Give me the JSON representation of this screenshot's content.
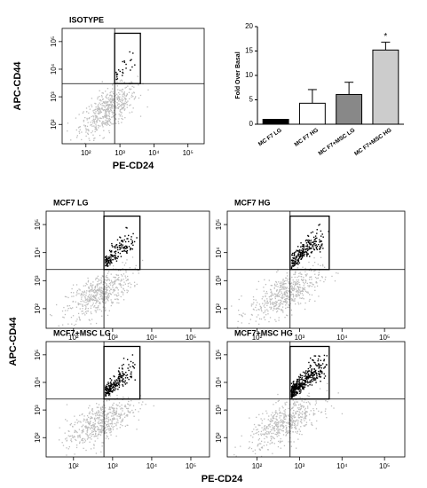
{
  "chart_data": [
    {
      "type": "flow",
      "title": "ISOTYPE",
      "xlabel": "PE-CD24",
      "ylabel": "APC-CD44",
      "xscale": "log",
      "yscale": "log",
      "xlim": [
        20,
        300000
      ],
      "ylim": [
        20,
        300000
      ],
      "xticks": [
        {
          "value": 100,
          "label": "10²"
        },
        {
          "value": 1000,
          "label": "10³"
        },
        {
          "value": 10000,
          "label": "10⁴"
        },
        {
          "value": 100000,
          "label": "10⁵"
        }
      ],
      "yticks": [
        {
          "value": 100,
          "label": "10²"
        },
        {
          "value": 1000,
          "label": "10³"
        },
        {
          "value": 10000,
          "label": "10⁴"
        },
        {
          "value": 100000,
          "label": "10⁵"
        }
      ],
      "quadrant": {
        "x": 700,
        "y": 3000
      },
      "gate": {
        "x": [
          700,
          4000
        ],
        "y": [
          3000,
          200000
        ]
      }
    },
    {
      "type": "bar",
      "ylabel": "Fold Over Basal",
      "categories": [
        "MC F7 LG",
        "MC F7 HG",
        "MC F7+MSC  LG",
        "MC F7+MSC  HG"
      ],
      "values": [
        1,
        4.3,
        6.1,
        15.2
      ],
      "errors": [
        0,
        2.8,
        2.5,
        1.6
      ],
      "colors": [
        "#000000",
        "#ffffff",
        "#888888",
        "#cccccc"
      ],
      "ylim": [
        0,
        20
      ],
      "yticks": [
        0,
        5,
        10,
        15,
        20
      ],
      "annotation": "*"
    },
    {
      "type": "flow",
      "title": "MCF7 LG",
      "xscale": "log",
      "yscale": "log",
      "xlim": [
        20,
        300000
      ],
      "ylim": [
        20,
        300000
      ],
      "xticks": [
        {
          "value": 100,
          "label": "10²"
        },
        {
          "value": 1000,
          "label": "10³"
        },
        {
          "value": 10000,
          "label": "10⁴"
        },
        {
          "value": 100000,
          "label": "10⁵"
        }
      ],
      "yticks": [
        {
          "value": 100,
          "label": "10²"
        },
        {
          "value": 1000,
          "label": "10³"
        },
        {
          "value": 10000,
          "label": "10⁴"
        },
        {
          "value": 100000,
          "label": "10⁵"
        }
      ],
      "quadrant": {
        "x": 600,
        "y": 2500
      },
      "gate": {
        "x": [
          600,
          5000
        ],
        "y": [
          2500,
          200000
        ]
      }
    },
    {
      "type": "flow",
      "title": "MCF7 HG",
      "xscale": "log",
      "yscale": "log",
      "xlim": [
        20,
        300000
      ],
      "ylim": [
        20,
        300000
      ],
      "xticks": [
        {
          "value": 100,
          "label": "10²"
        },
        {
          "value": 1000,
          "label": "10³"
        },
        {
          "value": 10000,
          "label": "10⁴"
        },
        {
          "value": 100000,
          "label": "10⁵"
        }
      ],
      "yticks": [
        {
          "value": 100,
          "label": "10²"
        },
        {
          "value": 1000,
          "label": "10³"
        },
        {
          "value": 10000,
          "label": "10⁴"
        },
        {
          "value": 100000,
          "label": "10⁵"
        }
      ],
      "quadrant": {
        "x": 600,
        "y": 2500
      },
      "gate": {
        "x": [
          600,
          5000
        ],
        "y": [
          2500,
          200000
        ]
      }
    },
    {
      "type": "flow",
      "title": "MCF7+MSC LG",
      "xscale": "log",
      "yscale": "log",
      "xlim": [
        20,
        300000
      ],
      "ylim": [
        20,
        300000
      ],
      "xticks": [
        {
          "value": 100,
          "label": "10²"
        },
        {
          "value": 1000,
          "label": "10³"
        },
        {
          "value": 10000,
          "label": "10⁴"
        },
        {
          "value": 100000,
          "label": "10⁵"
        }
      ],
      "yticks": [
        {
          "value": 100,
          "label": "10²"
        },
        {
          "value": 1000,
          "label": "10³"
        },
        {
          "value": 10000,
          "label": "10⁴"
        },
        {
          "value": 100000,
          "label": "10⁵"
        }
      ],
      "quadrant": {
        "x": 600,
        "y": 2500
      },
      "gate": {
        "x": [
          600,
          5000
        ],
        "y": [
          2500,
          200000
        ]
      }
    },
    {
      "type": "flow",
      "title": "MCF7+MSC HG",
      "xscale": "log",
      "yscale": "log",
      "xlim": [
        20,
        300000
      ],
      "ylim": [
        20,
        300000
      ],
      "xticks": [
        {
          "value": 100,
          "label": "10²"
        },
        {
          "value": 1000,
          "label": "10³"
        },
        {
          "value": 10000,
          "label": "10⁴"
        },
        {
          "value": 100000,
          "label": "10⁵"
        }
      ],
      "yticks": [
        {
          "value": 100,
          "label": "10²"
        },
        {
          "value": 1000,
          "label": "10³"
        },
        {
          "value": 10000,
          "label": "10⁴"
        },
        {
          "value": 100000,
          "label": "10⁵"
        }
      ],
      "quadrant": {
        "x": 600,
        "y": 2500
      },
      "gate": {
        "x": [
          600,
          5000
        ],
        "y": [
          2500,
          200000
        ]
      }
    }
  ],
  "shared_axes": {
    "xlabel": "PE-CD24",
    "ylabel": "APC-CD44"
  }
}
